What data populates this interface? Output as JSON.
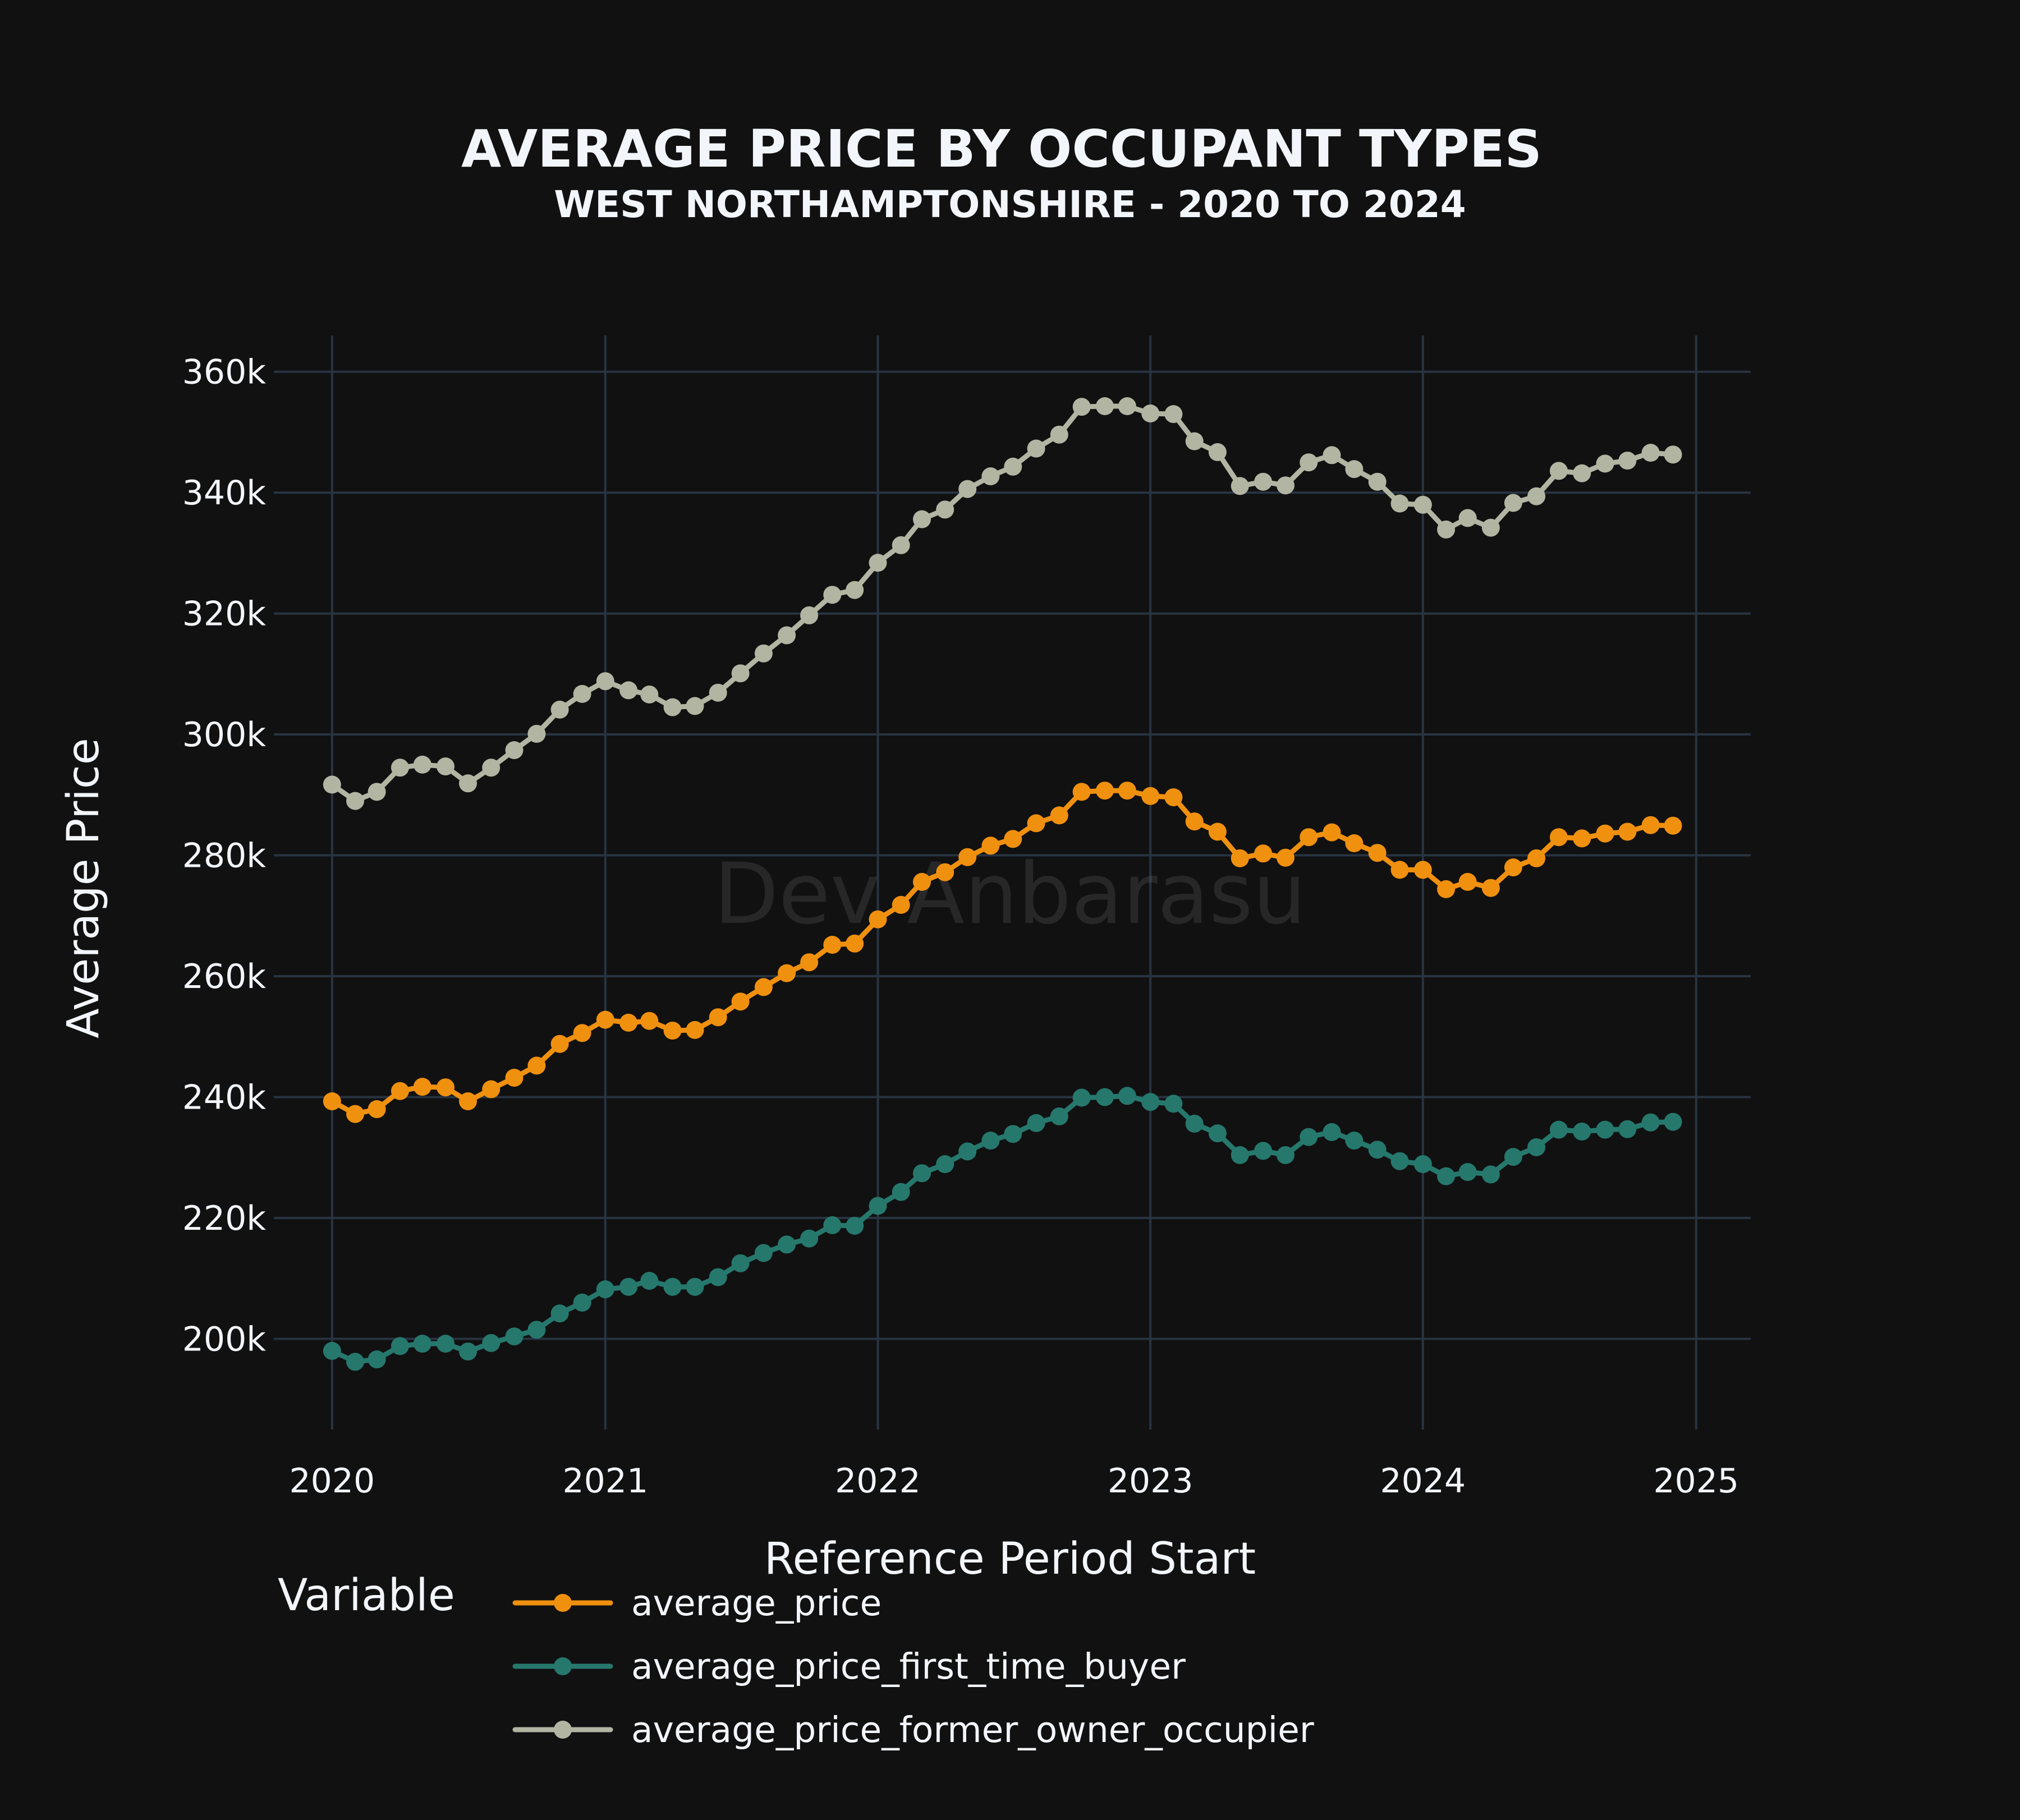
{
  "chart_data": {
    "type": "line",
    "title": "AVERAGE PRICE BY OCCUPANT TYPES",
    "subtitle": "WEST NORTHAMPTONSHIRE - 2020 TO 2024",
    "xlabel": "Reference Period Start",
    "ylabel": "Average Price",
    "watermark": "Dev Anbarasu",
    "legend_title": "Variable",
    "legend_position": "bottom",
    "grid": true,
    "background": "#111111",
    "grid_color": "#283442",
    "xlim": [
      "2019-10-15",
      "2025-03-15"
    ],
    "ylim": [
      185000,
      366000
    ],
    "x_ticks": [
      "2020",
      "2021",
      "2022",
      "2023",
      "2024",
      "2025"
    ],
    "y_ticks": [
      200000,
      220000,
      240000,
      260000,
      280000,
      300000,
      320000,
      340000,
      360000
    ],
    "y_tick_labels": [
      "200k",
      "220k",
      "240k",
      "260k",
      "280k",
      "300k",
      "320k",
      "340k",
      "360k"
    ],
    "x": [
      "2020-01",
      "2020-02",
      "2020-03",
      "2020-04",
      "2020-05",
      "2020-06",
      "2020-07",
      "2020-08",
      "2020-09",
      "2020-10",
      "2020-11",
      "2020-12",
      "2021-01",
      "2021-02",
      "2021-03",
      "2021-04",
      "2021-05",
      "2021-06",
      "2021-07",
      "2021-08",
      "2021-09",
      "2021-10",
      "2021-11",
      "2021-12",
      "2022-01",
      "2022-02",
      "2022-03",
      "2022-04",
      "2022-05",
      "2022-06",
      "2022-07",
      "2022-08",
      "2022-09",
      "2022-10",
      "2022-11",
      "2022-12",
      "2023-01",
      "2023-02",
      "2023-03",
      "2023-04",
      "2023-05",
      "2023-06",
      "2023-07",
      "2023-08",
      "2023-09",
      "2023-10",
      "2023-11",
      "2023-12",
      "2024-01",
      "2024-02",
      "2024-03",
      "2024-04",
      "2024-05",
      "2024-06",
      "2024-07",
      "2024-08",
      "2024-09",
      "2024-10",
      "2024-11",
      "2024-12"
    ],
    "series": [
      {
        "name": "average_price",
        "color": "#f0900f",
        "values": [
          239300,
          237200,
          238000,
          241000,
          241700,
          241600,
          239300,
          241300,
          243200,
          245200,
          248800,
          250600,
          252800,
          252300,
          252600,
          251000,
          251100,
          253200,
          255800,
          258200,
          260500,
          262300,
          265200,
          265400,
          269400,
          271800,
          275600,
          277200,
          279700,
          281600,
          282700,
          285300,
          286600,
          290500,
          290700,
          290700,
          289800,
          289600,
          285600,
          283900,
          279500,
          280300,
          279600,
          283000,
          283800,
          282000,
          280400,
          277600,
          277600,
          274400,
          275600,
          274600,
          278000,
          279500,
          283000,
          282800,
          283600,
          283900,
          285000,
          284900
        ]
      },
      {
        "name": "average_price_first_time_buyer",
        "color": "#26786d",
        "values": [
          198000,
          196200,
          196600,
          198800,
          199200,
          199200,
          197900,
          199300,
          200400,
          201500,
          204200,
          206000,
          208200,
          208600,
          209600,
          208600,
          208600,
          210200,
          212500,
          214200,
          215600,
          216600,
          218800,
          218700,
          222000,
          224300,
          227400,
          228900,
          231000,
          232800,
          233900,
          235700,
          236800,
          239900,
          240000,
          240200,
          239200,
          238900,
          235600,
          234000,
          230400,
          231100,
          230400,
          233400,
          234200,
          232800,
          231300,
          229400,
          228900,
          226900,
          227600,
          227200,
          230100,
          231700,
          234600,
          234300,
          234600,
          234700,
          235800,
          235900
        ]
      },
      {
        "name": "average_price_former_owner_occupier",
        "color": "#b3b5a3",
        "values": [
          291700,
          289000,
          290500,
          294500,
          295000,
          294700,
          291900,
          294500,
          297400,
          300100,
          304100,
          306700,
          308800,
          307300,
          306600,
          304500,
          304700,
          306900,
          310100,
          313400,
          316400,
          319700,
          323100,
          323900,
          328400,
          331300,
          335600,
          337200,
          340600,
          342700,
          344300,
          347300,
          349600,
          354200,
          354300,
          354300,
          353100,
          353000,
          348500,
          346700,
          341100,
          341800,
          341200,
          345000,
          346200,
          343900,
          341800,
          338200,
          338000,
          333900,
          335800,
          334200,
          338300,
          339400,
          343600,
          343200,
          344800,
          345300,
          346600,
          346300
        ]
      }
    ]
  }
}
